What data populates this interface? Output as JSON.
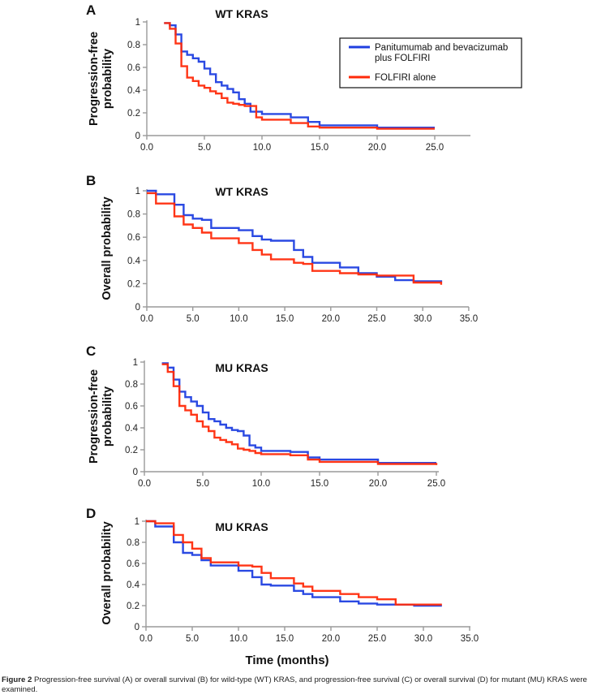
{
  "figure": {
    "caption_label": "Figure 2",
    "caption_text": " Progression-free survival (A) or overall survival (B) for wild-type (WT) KRAS, and progression-free survival (C) or overall survival (D) for mutant (MU) KRAS were examined.",
    "xlabel": "Time (months)",
    "legend": [
      {
        "name": "Panitumumab and bevacizumab plus FOLFIRI",
        "lines": [
          "Panitumumab and bevacizumab",
          "plus FOLFIRI"
        ],
        "color": "#1f3fe0"
      },
      {
        "name": "FOLFIRI alone",
        "lines": [
          "FOLFIRI alone"
        ],
        "color": "#ff2a0a"
      }
    ]
  },
  "chart_data": [
    {
      "panel": "A",
      "type": "line",
      "step": true,
      "title": "WT KRAS",
      "ylabel": [
        "Progression-free",
        "probability"
      ],
      "xlabel": "",
      "xlim": [
        0,
        28
      ],
      "ylim": [
        0,
        1
      ],
      "xticks": [
        "0.0",
        "5.0",
        "10.0",
        "15.0",
        "20.0",
        "25.0"
      ],
      "xtick_values": [
        0,
        5,
        10,
        15,
        20,
        25
      ],
      "yticks": [
        "0",
        "0.2",
        "0.4",
        "0.6",
        "0.8",
        "1"
      ],
      "ytick_values": [
        0,
        0.2,
        0.4,
        0.6,
        0.8,
        1
      ],
      "legend_position": "top-right",
      "series": [
        {
          "name": "Panitumumab and bevacizumab plus FOLFIRI",
          "color": "#1f3fe0",
          "x": [
            1.5,
            2.0,
            2.5,
            3.0,
            3.5,
            4.0,
            4.5,
            5.0,
            5.5,
            6.0,
            6.5,
            7.0,
            7.5,
            8.0,
            8.5,
            9.0,
            10.0,
            12.5,
            14.0,
            15.0,
            20.0,
            25.0
          ],
          "y": [
            0.99,
            0.97,
            0.89,
            0.74,
            0.71,
            0.68,
            0.65,
            0.59,
            0.54,
            0.47,
            0.44,
            0.41,
            0.38,
            0.32,
            0.28,
            0.21,
            0.19,
            0.16,
            0.12,
            0.09,
            0.07,
            0.07
          ]
        },
        {
          "name": "FOLFIRI alone",
          "color": "#ff2a0a",
          "x": [
            1.5,
            2.0,
            2.5,
            3.0,
            3.5,
            4.0,
            4.5,
            5.0,
            5.5,
            6.0,
            6.5,
            7.0,
            7.5,
            8.0,
            8.5,
            9.5,
            10.0,
            12.5,
            14.0,
            15.0,
            20.0,
            25.0
          ],
          "y": [
            0.99,
            0.94,
            0.81,
            0.61,
            0.51,
            0.48,
            0.44,
            0.42,
            0.39,
            0.37,
            0.33,
            0.29,
            0.28,
            0.27,
            0.26,
            0.16,
            0.14,
            0.11,
            0.08,
            0.07,
            0.06,
            0.06
          ]
        }
      ]
    },
    {
      "panel": "B",
      "type": "line",
      "step": true,
      "title": "WT KRAS",
      "ylabel": [
        "Overall probability"
      ],
      "xlabel": "",
      "xlim": [
        0,
        35
      ],
      "ylim": [
        0,
        1
      ],
      "xticks": [
        "0.0",
        "5.0",
        "10.0",
        "15.0",
        "20.0",
        "25.0",
        "30.0",
        "35.0"
      ],
      "xtick_values": [
        0,
        5,
        10,
        15,
        20,
        25,
        30,
        35
      ],
      "yticks": [
        "0",
        "0.2",
        "0.4",
        "0.6",
        "0.8",
        "1"
      ],
      "ytick_values": [
        0,
        0.2,
        0.4,
        0.6,
        0.8,
        1
      ],
      "series": [
        {
          "name": "Panitumumab and bevacizumab plus FOLFIRI",
          "color": "#1f3fe0",
          "x": [
            0,
            1,
            3,
            4,
            5,
            6,
            7,
            10,
            11.5,
            12.5,
            13.5,
            16,
            17,
            18,
            21,
            23,
            25,
            27,
            29,
            32
          ],
          "y": [
            1.0,
            0.97,
            0.88,
            0.79,
            0.76,
            0.75,
            0.68,
            0.66,
            0.61,
            0.58,
            0.57,
            0.49,
            0.43,
            0.38,
            0.34,
            0.29,
            0.26,
            0.23,
            0.22,
            0.21
          ]
        },
        {
          "name": "FOLFIRI alone",
          "color": "#ff2a0a",
          "x": [
            0,
            1,
            3,
            4,
            5,
            6,
            7,
            10,
            11.5,
            12.5,
            13.5,
            16,
            17,
            18,
            21,
            23,
            25,
            29,
            32
          ],
          "y": [
            0.98,
            0.89,
            0.78,
            0.71,
            0.68,
            0.64,
            0.59,
            0.55,
            0.49,
            0.45,
            0.41,
            0.38,
            0.37,
            0.31,
            0.29,
            0.28,
            0.27,
            0.21,
            0.19
          ]
        }
      ]
    },
    {
      "panel": "C",
      "type": "line",
      "step": true,
      "title": "MU KRAS",
      "ylabel": [
        "Progression-free",
        "probability"
      ],
      "xlabel": "",
      "xlim": [
        0,
        27
      ],
      "ylim": [
        0,
        1
      ],
      "xticks": [
        "0.0",
        "5.0",
        "10.0",
        "15.0",
        "20.0",
        "25.0"
      ],
      "xtick_values": [
        0,
        5,
        10,
        15,
        20,
        25
      ],
      "yticks": [
        "0",
        "0.2",
        "0.4",
        "0.6",
        "0.8",
        "1"
      ],
      "ytick_values": [
        0,
        0.2,
        0.4,
        0.6,
        0.8,
        1
      ],
      "series": [
        {
          "name": "Panitumumab and bevacizumab plus FOLFIRI",
          "color": "#1f3fe0",
          "x": [
            1.5,
            2.0,
            2.5,
            3.0,
            3.5,
            4.0,
            4.5,
            5.0,
            5.5,
            6.0,
            6.5,
            7.0,
            7.5,
            8.0,
            8.5,
            9.0,
            9.5,
            10.0,
            12.5,
            14.0,
            15.0,
            20.0,
            25.0
          ],
          "y": [
            0.99,
            0.95,
            0.84,
            0.73,
            0.68,
            0.64,
            0.6,
            0.54,
            0.48,
            0.46,
            0.43,
            0.4,
            0.38,
            0.37,
            0.33,
            0.24,
            0.22,
            0.19,
            0.18,
            0.13,
            0.11,
            0.08,
            0.08
          ]
        },
        {
          "name": "FOLFIRI alone",
          "color": "#ff2a0a",
          "x": [
            1.5,
            2.0,
            2.5,
            3.0,
            3.5,
            4.0,
            4.5,
            5.0,
            5.5,
            6.0,
            6.5,
            7.0,
            7.5,
            8.0,
            8.5,
            9.0,
            9.5,
            10.0,
            12.5,
            14.0,
            15.0,
            20.0,
            25.0
          ],
          "y": [
            0.98,
            0.91,
            0.78,
            0.6,
            0.56,
            0.52,
            0.46,
            0.41,
            0.37,
            0.31,
            0.29,
            0.27,
            0.25,
            0.21,
            0.2,
            0.19,
            0.17,
            0.16,
            0.15,
            0.11,
            0.09,
            0.07,
            0.06
          ]
        }
      ]
    },
    {
      "panel": "D",
      "type": "line",
      "step": true,
      "title": "MU KRAS",
      "ylabel": [
        "Overall probability"
      ],
      "xlabel": "Time (months)",
      "xlim": [
        0,
        35
      ],
      "ylim": [
        0,
        1
      ],
      "xticks": [
        "0.0",
        "5.0",
        "10.0",
        "15.0",
        "20.0",
        "25.0",
        "30.0",
        "35.0"
      ],
      "xtick_values": [
        0,
        5,
        10,
        15,
        20,
        25,
        30,
        35
      ],
      "yticks": [
        "0",
        "0.2",
        "0.4",
        "0.6",
        "0.8",
        "1"
      ],
      "ytick_values": [
        0,
        0.2,
        0.4,
        0.6,
        0.8,
        1
      ],
      "series": [
        {
          "name": "Panitumumab and bevacizumab plus FOLFIRI",
          "color": "#1f3fe0",
          "x": [
            0,
            1,
            3,
            4,
            5,
            6,
            7,
            10,
            11.5,
            12.5,
            13.5,
            16,
            17,
            18,
            21,
            23,
            25,
            27,
            29,
            32
          ],
          "y": [
            1.0,
            0.95,
            0.8,
            0.7,
            0.68,
            0.63,
            0.58,
            0.53,
            0.47,
            0.4,
            0.39,
            0.34,
            0.31,
            0.28,
            0.24,
            0.22,
            0.21,
            0.21,
            0.2,
            0.2
          ]
        },
        {
          "name": "FOLFIRI alone",
          "color": "#ff2a0a",
          "x": [
            0,
            1,
            3,
            4,
            5,
            6,
            7,
            10,
            11.5,
            12.5,
            13.5,
            16,
            17,
            18,
            21,
            23,
            25,
            27,
            32
          ],
          "y": [
            1.0,
            0.98,
            0.87,
            0.8,
            0.74,
            0.65,
            0.61,
            0.58,
            0.57,
            0.51,
            0.46,
            0.41,
            0.38,
            0.34,
            0.31,
            0.28,
            0.26,
            0.21,
            0.21
          ]
        }
      ]
    }
  ]
}
